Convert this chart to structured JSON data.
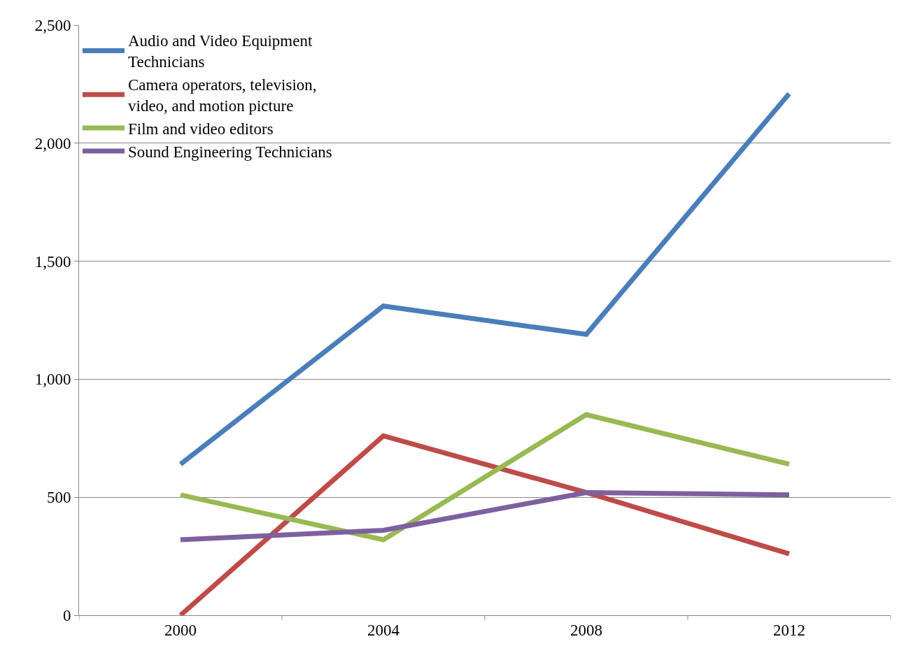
{
  "chart_data": {
    "type": "line",
    "categories": [
      "2000",
      "2004",
      "2008",
      "2012"
    ],
    "series": [
      {
        "name": "Audio and Video Equipment Technicians",
        "color": "#4a7ebb",
        "values": [
          640,
          1310,
          1190,
          2210
        ]
      },
      {
        "name": "Camera operators, television, video, and motion picture",
        "color": "#be4b48",
        "values": [
          0,
          760,
          520,
          260
        ]
      },
      {
        "name": "Film and video editors",
        "color": "#98b954",
        "values": [
          510,
          320,
          850,
          640
        ]
      },
      {
        "name": "Sound Engineering Technicians",
        "color": "#7d60a0",
        "values": [
          320,
          360,
          520,
          510
        ]
      }
    ],
    "ylim": [
      0,
      2500
    ],
    "yticks": [
      0,
      500,
      {
        "value": 1000,
        "label": "1,000"
      },
      {
        "value": 1500,
        "label": "1,500"
      },
      {
        "value": 2000,
        "label": "2,000"
      },
      {
        "value": 2500,
        "label": "2,500"
      }
    ],
    "grid": "y",
    "legend": "top left",
    "marker": "none",
    "line_style": "solid"
  }
}
